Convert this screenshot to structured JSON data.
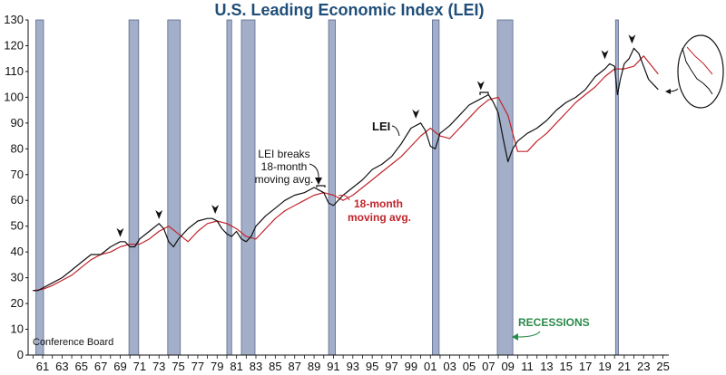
{
  "chart_data": {
    "type": "line",
    "title": "U.S. Leading Economic Index (LEI)",
    "source": "Conference Board",
    "xlim": [
      1959.5,
      2025.6
    ],
    "ylim": [
      0,
      130
    ],
    "yticks": [
      0,
      10,
      20,
      30,
      40,
      50,
      60,
      70,
      80,
      90,
      100,
      110,
      120,
      130
    ],
    "xticks": [
      1961,
      1963,
      1965,
      1967,
      1969,
      1971,
      1973,
      1975,
      1977,
      1979,
      1981,
      1983,
      1985,
      1987,
      1989,
      1991,
      1993,
      1995,
      1997,
      1999,
      2001,
      2003,
      2005,
      2007,
      2009,
      2011,
      2013,
      2015,
      2017,
      2019,
      2021,
      2023,
      2025
    ],
    "xtick_labels": [
      "61",
      "63",
      "65",
      "67",
      "69",
      "71",
      "73",
      "75",
      "77",
      "79",
      "81",
      "83",
      "85",
      "87",
      "89",
      "91",
      "93",
      "95",
      "97",
      "99",
      "01",
      "03",
      "05",
      "07",
      "09",
      "11",
      "13",
      "15",
      "17",
      "19",
      "21",
      "23",
      "25"
    ],
    "series": [
      {
        "name": "LEI",
        "color": "#111111",
        "x": [
          1960,
          1960.5,
          1961,
          1962,
          1963,
          1964,
          1965,
          1966,
          1967,
          1968,
          1969,
          1969.5,
          1970,
          1970.5,
          1971,
          1972,
          1973,
          1973.5,
          1974,
          1974.5,
          1975,
          1975.5,
          1976,
          1977,
          1978,
          1978.5,
          1979,
          1979.5,
          1980,
          1980.5,
          1981,
          1981.5,
          1982,
          1982.5,
          1983,
          1984,
          1985,
          1986,
          1987,
          1988,
          1989,
          1989.5,
          1990,
          1990.5,
          1991,
          1992,
          1993,
          1994,
          1995,
          1996,
          1997,
          1998,
          1999,
          2000,
          2000.5,
          2001,
          2001.5,
          2002,
          2003,
          2004,
          2005,
          2006,
          2006.5,
          2007,
          2007.5,
          2008,
          2008.5,
          2009,
          2009.5,
          2010,
          2011,
          2012,
          2013,
          2014,
          2015,
          2016,
          2017,
          2018,
          2019,
          2019.5,
          2020,
          2020.3,
          2020.6,
          2021,
          2021.5,
          2022,
          2022.5,
          2023,
          2023.5,
          2024,
          2024.5
        ],
        "y": [
          25,
          25,
          26,
          28,
          30,
          33,
          36,
          39,
          39,
          42,
          44,
          44,
          42,
          42,
          45,
          48,
          51,
          49,
          44,
          42,
          45,
          47,
          49,
          52,
          53,
          53,
          52,
          49,
          47,
          46,
          48,
          45,
          44,
          46,
          50,
          54,
          57,
          60,
          62,
          63,
          65,
          64,
          63,
          59,
          58,
          62,
          65,
          68,
          72,
          74,
          77,
          82,
          88,
          90,
          87,
          81,
          80,
          86,
          89,
          93,
          97,
          99,
          100,
          101,
          98,
          94,
          84,
          75,
          80,
          83,
          86,
          88,
          91,
          95,
          98,
          100,
          103,
          108,
          111,
          113,
          112,
          101,
          107,
          113,
          115,
          119,
          117,
          112,
          107,
          105,
          103
        ],
        "label": "LEI"
      },
      {
        "name": "18-month moving avg.",
        "color": "#c0242b",
        "x": [
          1960,
          1961,
          1962,
          1963,
          1964,
          1965,
          1966,
          1967,
          1968,
          1969,
          1970,
          1971,
          1972,
          1973,
          1974,
          1975,
          1976,
          1977,
          1978,
          1979,
          1980,
          1981,
          1982,
          1983,
          1984,
          1985,
          1986,
          1987,
          1988,
          1989,
          1990,
          1991,
          1992,
          1993,
          1994,
          1995,
          1996,
          1997,
          1998,
          1999,
          2000,
          2001,
          2002,
          2003,
          2004,
          2005,
          2006,
          2007,
          2008,
          2009,
          2010,
          2011,
          2012,
          2013,
          2014,
          2015,
          2016,
          2017,
          2018,
          2019,
          2020,
          2021,
          2022,
          2023,
          2024.5
        ],
        "y": [
          25,
          25.5,
          27,
          29,
          31,
          34,
          37,
          39,
          40,
          42,
          43,
          43,
          45,
          48,
          50,
          47,
          44,
          48,
          51,
          52,
          51,
          49,
          46,
          45,
          49,
          53,
          56,
          58,
          60,
          62,
          63,
          62,
          60,
          62,
          65,
          68,
          71,
          74,
          77,
          81,
          85,
          88,
          85,
          84,
          88,
          92,
          96,
          99,
          100,
          93,
          79,
          79,
          83,
          86,
          90,
          94,
          98,
          101,
          104,
          108,
          111,
          111,
          112,
          116,
          109
        ]
      }
    ],
    "recessions": [
      [
        1960.3,
        1961.1
      ],
      [
        1969.9,
        1970.9
      ],
      [
        1973.9,
        1975.2
      ],
      [
        1980.0,
        1980.5
      ],
      [
        1981.5,
        1982.9
      ],
      [
        1990.5,
        1991.2
      ],
      [
        2001.2,
        2001.9
      ],
      [
        2007.9,
        2009.5
      ],
      [
        2020.1,
        2020.4
      ]
    ],
    "peak_markers": [
      [
        1969.0,
        44
      ],
      [
        1973.0,
        51
      ],
      [
        1978.8,
        53
      ],
      [
        1999.5,
        90
      ],
      [
        2006.2,
        101
      ],
      [
        2019.0,
        113
      ],
      [
        2021.8,
        119
      ]
    ],
    "annotations": {
      "lei_label": "LEI",
      "break_label_1": "LEI breaks",
      "break_label_2": "18-month",
      "break_label_3": "moving avg.",
      "ma_label_1": "18-month",
      "ma_label_2": "moving avg.",
      "recessions_label": "RECESSIONS"
    },
    "colors": {
      "recession_fill": "#a3aec9",
      "recession_stroke": "#5a6a8e",
      "lei_line": "#111111",
      "ma_line": "#c0242b",
      "title": "#1f4e79",
      "recessions_label": "#2a8a4a"
    }
  }
}
